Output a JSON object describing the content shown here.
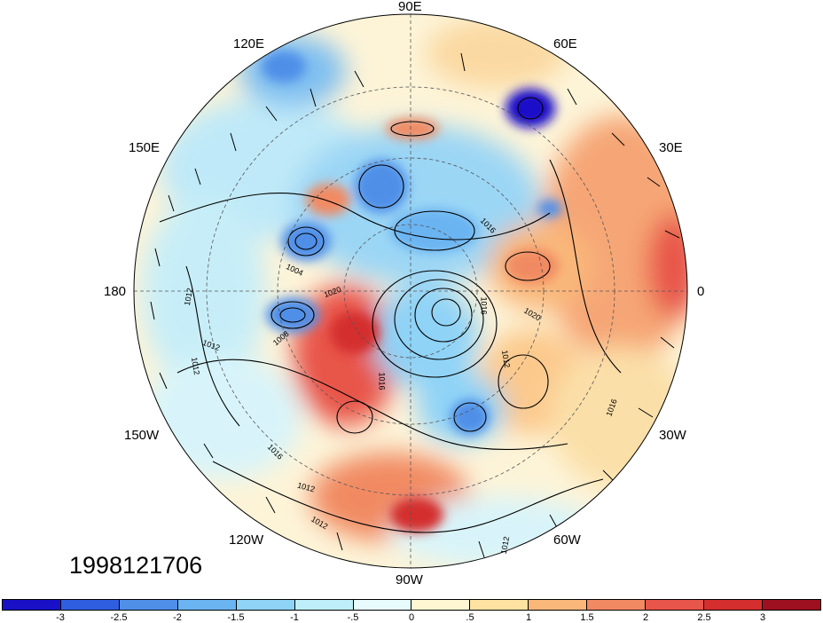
{
  "datestamp": "1998121706",
  "longitude_labels": {
    "top": "90E",
    "upper_left": "120E",
    "upper_right": "60E",
    "left_upper": "150E",
    "right_upper": "30E",
    "left": "180",
    "right": "0",
    "left_lower": "150W",
    "right_lower": "30W",
    "lower_left": "120W",
    "lower_right": "60W",
    "bottom": "90W"
  },
  "contour_labels": [
    "1012",
    "1012",
    "1012",
    "1004",
    "1020",
    "1008",
    "1016",
    "1016",
    "1016",
    "1012",
    "1016",
    "1020",
    "1016",
    "1012",
    "1012",
    "1012"
  ],
  "colorbar": {
    "colors": [
      "#1a10c8",
      "#2f5fe0",
      "#4f8fe8",
      "#6bb4f2",
      "#8fd3f7",
      "#bdeef9",
      "#e8fbfc",
      "#fff6d2",
      "#fde2a2",
      "#f9b77a",
      "#f18a62",
      "#e8554a",
      "#d42e2e",
      "#9e1020"
    ],
    "ticks": [
      "-3",
      "-2.5",
      "-2",
      "-1.5",
      "-1",
      "-.5",
      "0",
      ".5",
      "1",
      "1.5",
      "2",
      "2.5",
      "3"
    ]
  }
}
